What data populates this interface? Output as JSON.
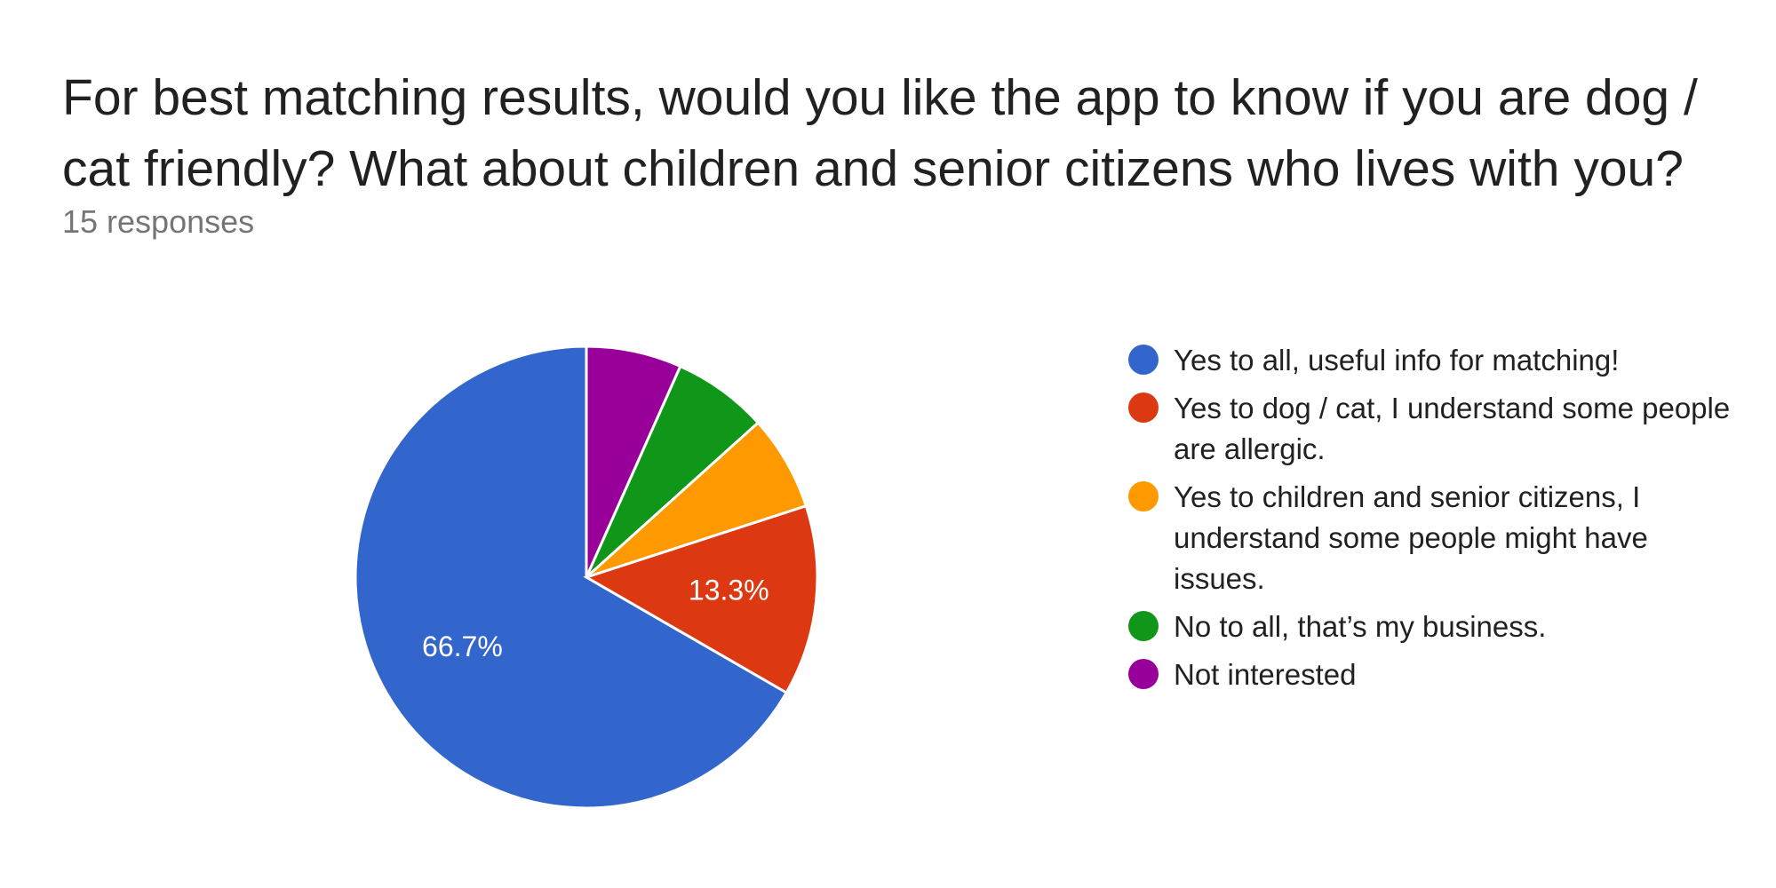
{
  "title": "For best matching results, would you like the app to know if you are dog / cat friendly? What about children and senior citizens who lives with you?",
  "subtitle": "15 responses",
  "chart_data": {
    "type": "pie",
    "total": 15,
    "slices": [
      {
        "label": "Yes to all, useful info for matching!",
        "value": 10,
        "percent_label": "66.7%",
        "color": "#3366cc"
      },
      {
        "label": "Yes to dog / cat, I understand some people are allergic.",
        "value": 2,
        "percent_label": "13.3%",
        "color": "#dc3912"
      },
      {
        "label": "Yes to children and senior citizens, I understand some people might have issues.",
        "value": 1,
        "percent_label": "",
        "color": "#ff9900"
      },
      {
        "label": "No to all, that’s my business.",
        "value": 1,
        "percent_label": "",
        "color": "#109618"
      },
      {
        "label": "Not interested",
        "value": 1,
        "percent_label": "",
        "color": "#990099"
      }
    ],
    "start_angle_deg": 90,
    "direction": "counterclockwise",
    "legend_position": "right"
  }
}
